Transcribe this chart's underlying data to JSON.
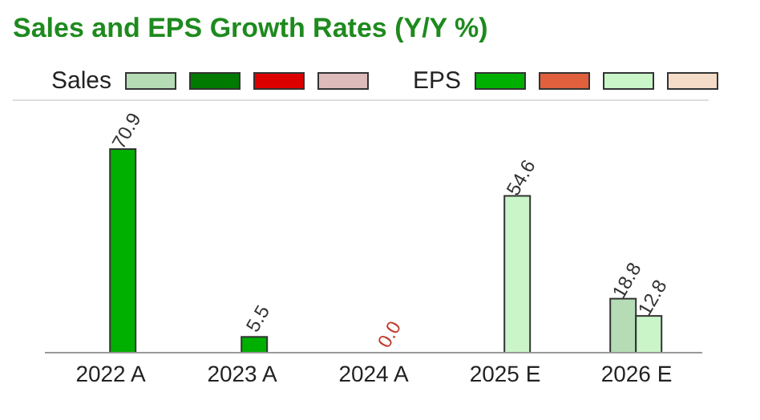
{
  "chart_data": {
    "type": "bar",
    "title": "Sales and EPS Growth Rates (Y/Y %)",
    "categories": [
      "2022  A",
      "2023  A",
      "2024  A",
      "2025  E",
      "2026  E"
    ],
    "legend": "top",
    "series": [
      {
        "name": "Sales",
        "color": "#b5dcb5",
        "colors": [
          null,
          null,
          null,
          null,
          "#b5dcb5"
        ],
        "values": [
          null,
          null,
          null,
          null,
          18.8
        ],
        "value_labels": [
          null,
          null,
          null,
          null,
          "18.8"
        ]
      },
      {
        "name": "EPS",
        "color": "#00b000",
        "colors": [
          "#00b000",
          "#00b000",
          "#c0392b",
          "#c9f5c9",
          "#c9f5c9"
        ],
        "values": [
          70.9,
          5.5,
          0.0,
          54.6,
          12.8
        ],
        "value_labels": [
          "70.9",
          "5.5",
          "0.0",
          "54.6",
          "12.8"
        ]
      }
    ]
  }
}
